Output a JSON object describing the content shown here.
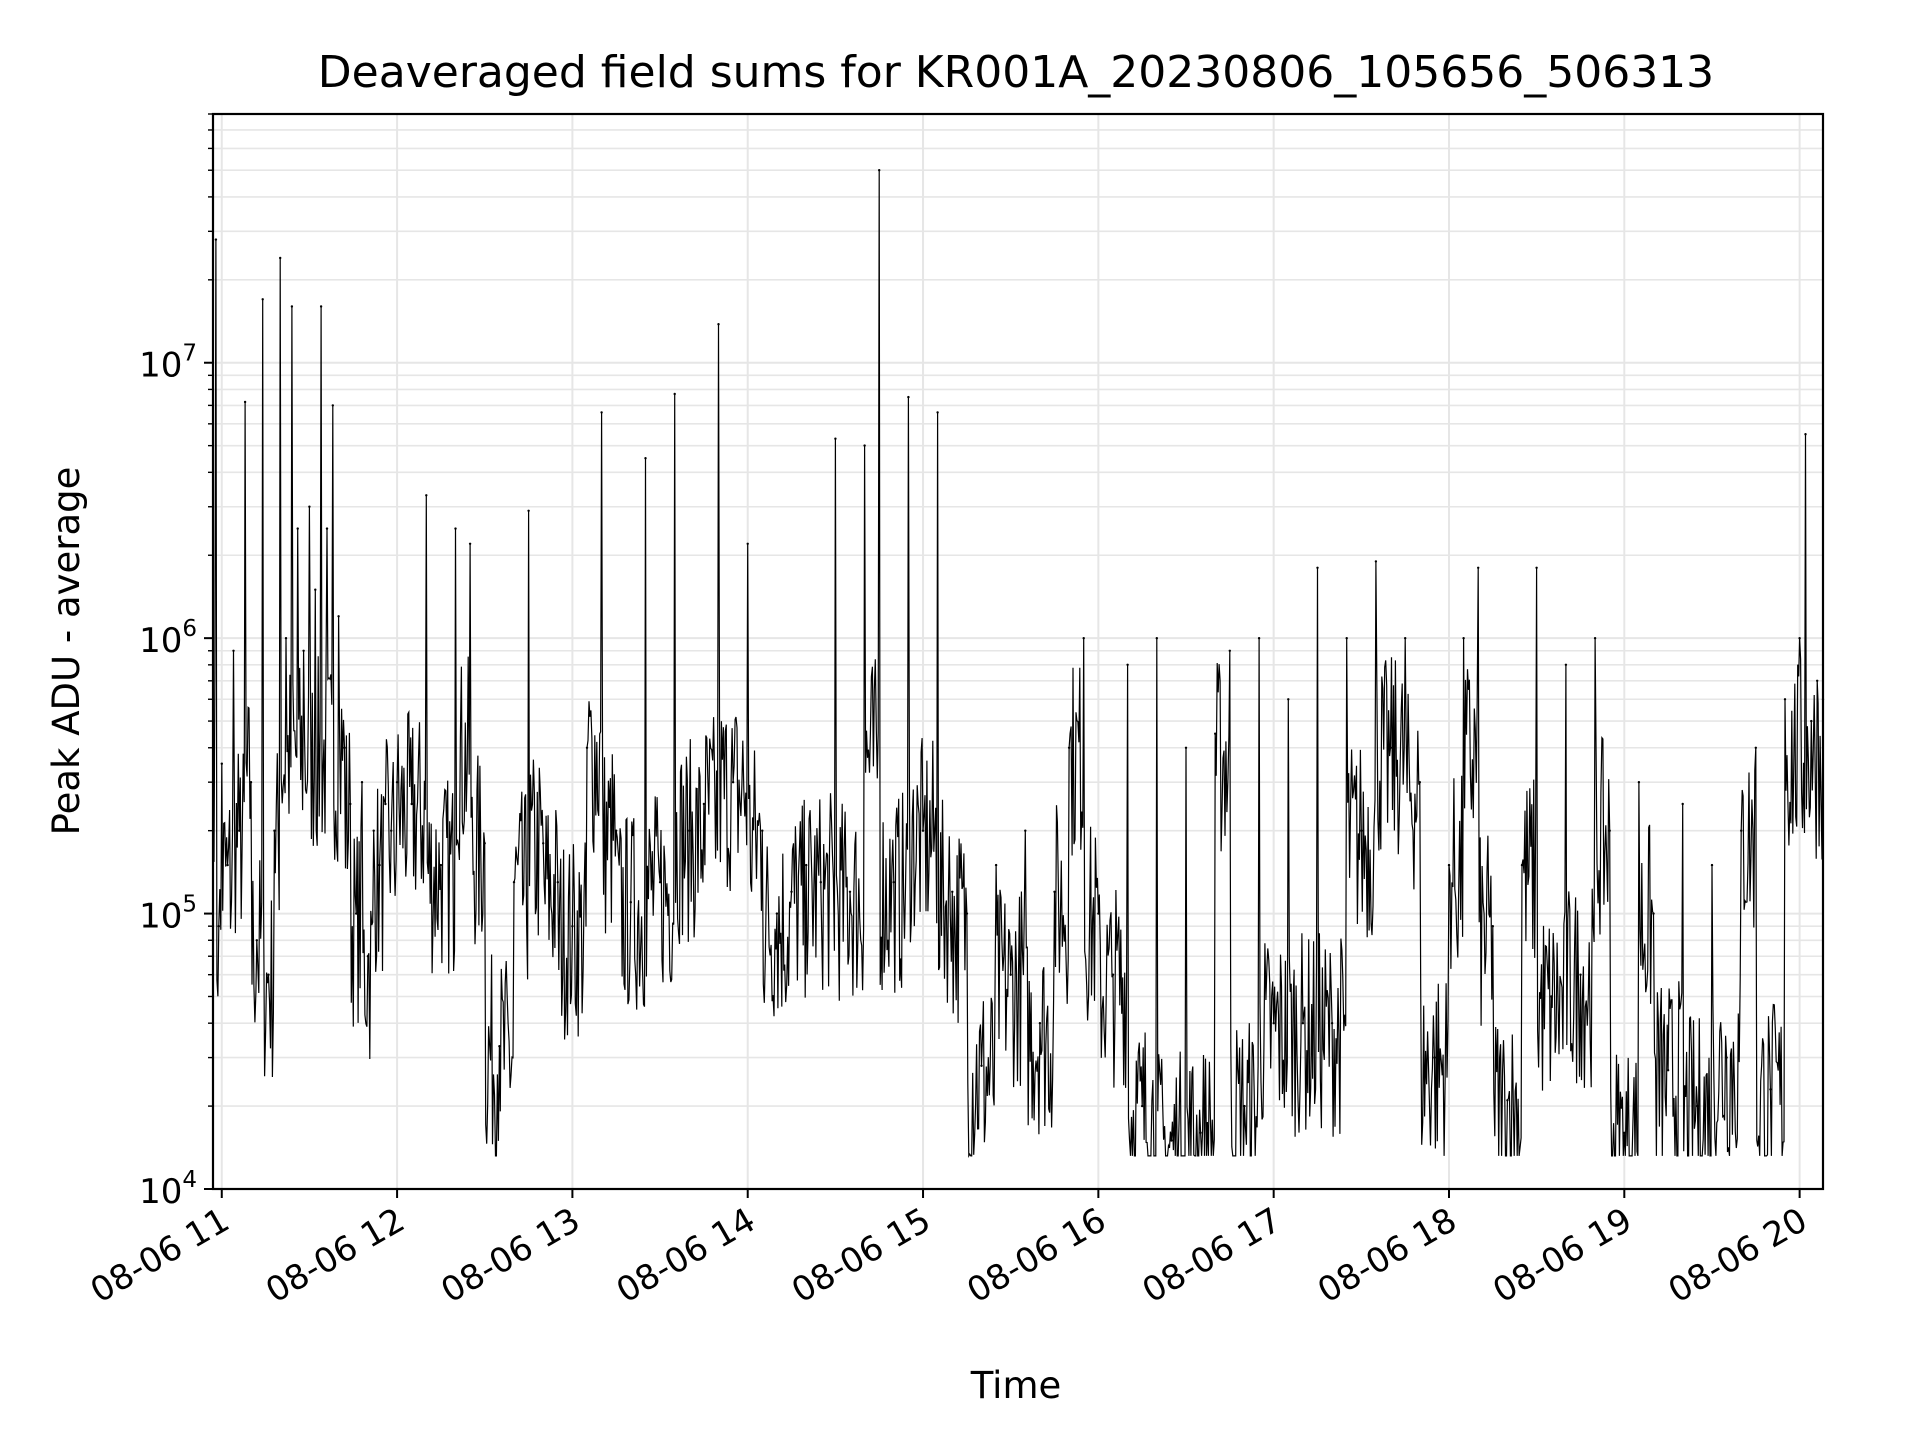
{
  "chart_data": {
    "type": "line",
    "title": "Deaveraged field sums for KR001A_20230806_105656_506313",
    "xlabel": "Time",
    "ylabel": "Peak ADU - average",
    "yscale": "log",
    "ylim": [
      10000,
      80000000
    ],
    "xlim": [
      "08-06 10:57",
      "08-06 20:08"
    ],
    "x_ticks": [
      "08-06 11",
      "08-06 12",
      "08-06 13",
      "08-06 14",
      "08-06 15",
      "08-06 16",
      "08-06 17",
      "08-06 18",
      "08-06 19",
      "08-06 20"
    ],
    "y_ticks": [
      {
        "value": 10000,
        "base": "10",
        "exp": "4"
      },
      {
        "value": 100000,
        "base": "10",
        "exp": "5"
      },
      {
        "value": 1000000,
        "base": "10",
        "exp": "6"
      },
      {
        "value": 10000000,
        "base": "10",
        "exp": "7"
      }
    ],
    "grid": true,
    "line_color": "#000000",
    "grid_color": "#e6e6e6",
    "series": [
      {
        "x": [
          "08-06 10:57",
          "08-06 10:58",
          "08-06 10:59",
          "08-06 11:00",
          "08-06 11:02",
          "08-06 11:04",
          "08-06 11:06",
          "08-06 11:08",
          "08-06 11:10",
          "08-06 11:12",
          "08-06 11:14",
          "08-06 11:16",
          "08-06 11:18",
          "08-06 11:20",
          "08-06 11:22",
          "08-06 11:24",
          "08-06 11:26",
          "08-06 11:28",
          "08-06 11:30",
          "08-06 11:32",
          "08-06 11:34",
          "08-06 11:36",
          "08-06 11:38",
          "08-06 11:40",
          "08-06 11:42",
          "08-06 11:44",
          "08-06 11:46",
          "08-06 11:48",
          "08-06 11:50",
          "08-06 11:52",
          "08-06 11:54",
          "08-06 11:56",
          "08-06 11:58",
          "08-06 12:00",
          "08-06 12:05",
          "08-06 12:10",
          "08-06 12:15",
          "08-06 12:20",
          "08-06 12:25",
          "08-06 12:30",
          "08-06 12:35",
          "08-06 12:40",
          "08-06 12:45",
          "08-06 12:50",
          "08-06 12:55",
          "08-06 13:00",
          "08-06 13:05",
          "08-06 13:10",
          "08-06 13:15",
          "08-06 13:20",
          "08-06 13:25",
          "08-06 13:30",
          "08-06 13:35",
          "08-06 13:40",
          "08-06 13:45",
          "08-06 13:50",
          "08-06 13:55",
          "08-06 14:00",
          "08-06 14:05",
          "08-06 14:10",
          "08-06 14:15",
          "08-06 14:20",
          "08-06 14:25",
          "08-06 14:30",
          "08-06 14:35",
          "08-06 14:40",
          "08-06 14:45",
          "08-06 14:50",
          "08-06 14:55",
          "08-06 15:00",
          "08-06 15:05",
          "08-06 15:10",
          "08-06 15:15",
          "08-06 15:20",
          "08-06 15:25",
          "08-06 15:30",
          "08-06 15:35",
          "08-06 15:40",
          "08-06 15:45",
          "08-06 15:50",
          "08-06 15:55",
          "08-06 16:00",
          "08-06 16:05",
          "08-06 16:10",
          "08-06 16:15",
          "08-06 16:20",
          "08-06 16:25",
          "08-06 16:30",
          "08-06 16:35",
          "08-06 16:40",
          "08-06 16:45",
          "08-06 16:50",
          "08-06 16:55",
          "08-06 17:00",
          "08-06 17:05",
          "08-06 17:10",
          "08-06 17:15",
          "08-06 17:20",
          "08-06 17:25",
          "08-06 17:30",
          "08-06 17:35",
          "08-06 17:40",
          "08-06 17:45",
          "08-06 17:50",
          "08-06 17:55",
          "08-06 18:00",
          "08-06 18:05",
          "08-06 18:10",
          "08-06 18:15",
          "08-06 18:20",
          "08-06 18:25",
          "08-06 18:30",
          "08-06 18:35",
          "08-06 18:40",
          "08-06 18:45",
          "08-06 18:50",
          "08-06 18:55",
          "08-06 19:00",
          "08-06 19:05",
          "08-06 19:10",
          "08-06 19:15",
          "08-06 19:20",
          "08-06 19:25",
          "08-06 19:30",
          "08-06 19:35",
          "08-06 19:40",
          "08-06 19:45",
          "08-06 19:50",
          "08-06 19:55",
          "08-06 20:00",
          "08-06 20:02",
          "08-06 20:04",
          "08-06 20:06",
          "08-06 20:08"
        ],
        "y": [
          400000,
          28000000,
          90000,
          350000,
          150000,
          900000,
          200000,
          7200000,
          300000,
          80000,
          17000000,
          60000,
          200000,
          24000000,
          1000000,
          16000000,
          2500000,
          900000,
          3000000,
          1500000,
          16000000,
          2500000,
          7000000,
          1200000,
          400000,
          250000,
          100000,
          300000,
          70000,
          200000,
          150000,
          250000,
          200000,
          300000,
          250000,
          3300000,
          150000,
          2500000,
          2200000,
          180000,
          33000,
          130000,
          2900000,
          180000,
          130000,
          90000,
          400000,
          6600000,
          200000,
          110000,
          4500000,
          130000,
          7700000,
          200000,
          250000,
          13800000,
          300000,
          2200000,
          200000,
          100000,
          120000,
          150000,
          130000,
          5300000,
          120000,
          5000000,
          50000000,
          130000,
          7500000,
          200000,
          6600000,
          120000,
          100000,
          28000,
          150000,
          60000,
          200000,
          40000,
          120000,
          400000,
          1000000,
          100000,
          60000,
          800000,
          20000,
          1000000,
          15000,
          400000,
          16000,
          450000,
          900000,
          20000,
          1000000,
          40000,
          600000,
          40000,
          1800000,
          40000,
          1000000,
          200000,
          1900000,
          400000,
          1000000,
          300000,
          30000,
          150000,
          1000000,
          1800000,
          90000,
          21000,
          150000,
          1800000,
          50000,
          800000,
          60000,
          1000000,
          200000,
          16000,
          300000,
          100000,
          27000,
          250000,
          20000,
          150000,
          30000,
          200000,
          400000,
          23000,
          600000,
          1000000,
          5500000,
          500000,
          700000,
          600000
        ]
      }
    ]
  }
}
